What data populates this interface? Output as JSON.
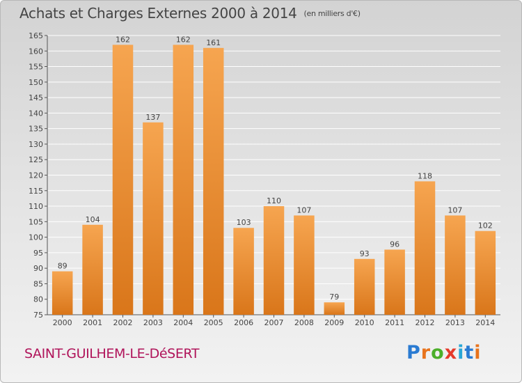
{
  "header": {
    "title": "Achats et Charges Externes 2000 à 2014",
    "unit": "(en milliers d'€)"
  },
  "footer": {
    "commune": "SAINT-GUILHEM-LE-DéSERT",
    "logo_text": "Proxiti"
  },
  "colors": {
    "bar_light": "#f6a550",
    "bar_dark": "#d9761a",
    "title": "#444444",
    "commune": "#b0145a",
    "grid": "#ffffff"
  },
  "chart_data": {
    "type": "bar",
    "categories": [
      "2000",
      "2001",
      "2002",
      "2003",
      "2004",
      "2005",
      "2006",
      "2007",
      "2008",
      "2009",
      "2010",
      "2011",
      "2012",
      "2013",
      "2014"
    ],
    "values": [
      89,
      104,
      162,
      137,
      162,
      161,
      103,
      110,
      107,
      79,
      93,
      96,
      118,
      107,
      102
    ],
    "ylim": [
      75,
      165
    ],
    "yticks": [
      75,
      80,
      85,
      90,
      95,
      100,
      105,
      110,
      115,
      120,
      125,
      130,
      135,
      140,
      145,
      150,
      155,
      160,
      165
    ],
    "grid": true,
    "data_labels": true
  }
}
